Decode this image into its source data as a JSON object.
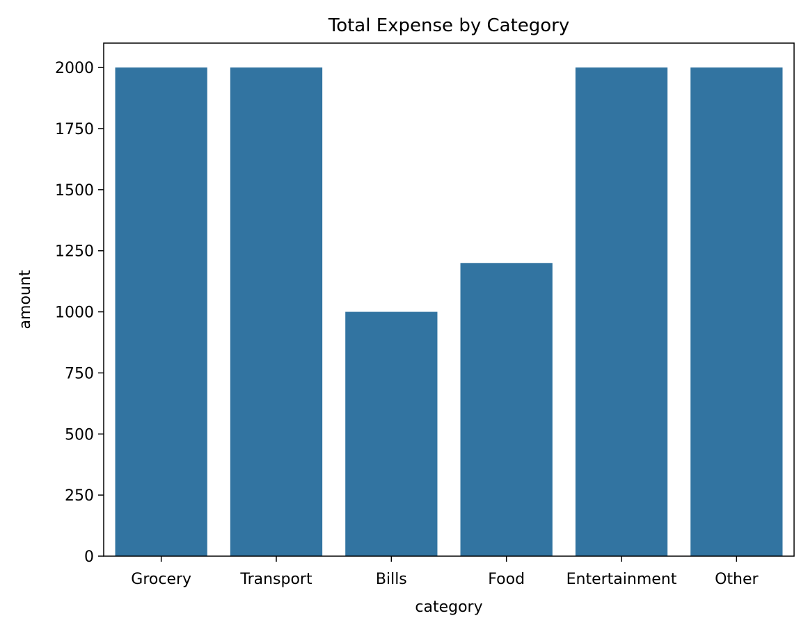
{
  "chart_data": {
    "type": "bar",
    "title": "Total Expense by Category",
    "xlabel": "category",
    "ylabel": "amount",
    "categories": [
      "Grocery",
      "Transport",
      "Bills",
      "Food",
      "Entertainment",
      "Other"
    ],
    "values": [
      2000,
      2000,
      1000,
      1200,
      2000,
      2000
    ],
    "ylim": [
      0,
      2100
    ],
    "yticks": [
      0,
      250,
      500,
      750,
      1000,
      1250,
      1500,
      1750,
      2000
    ],
    "grid": false,
    "bar_color": "#3274a1"
  }
}
